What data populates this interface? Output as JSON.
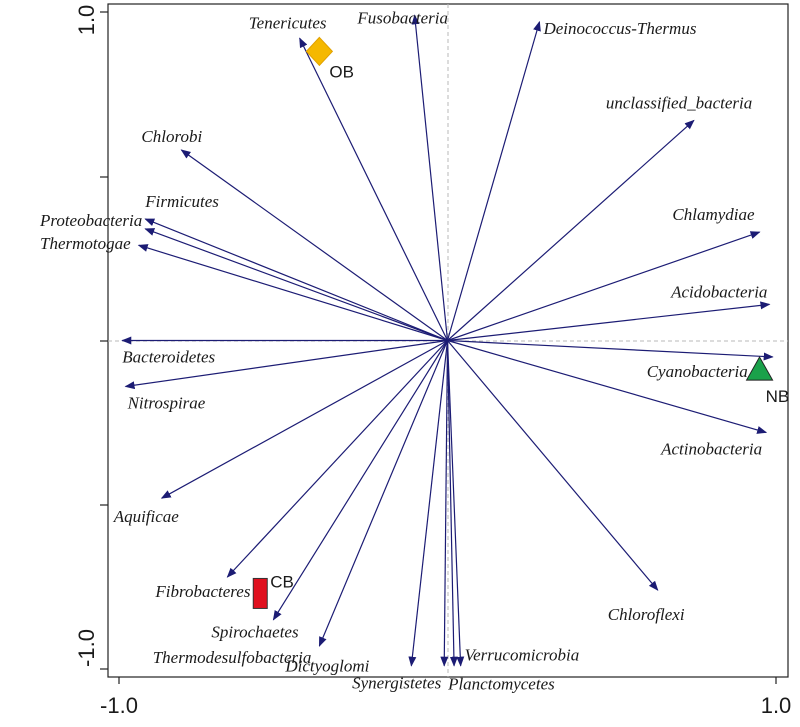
{
  "chart_data": {
    "type": "scatter",
    "subtype": "biplot",
    "xlim": [
      -1.0,
      1.0
    ],
    "ylim": [
      -1.0,
      1.0
    ],
    "x_tick_labels": [
      "-1.0",
      "1.0"
    ],
    "y_tick_labels": [
      "-1.0",
      "1.0"
    ],
    "reference_lines": "dashed at x=0 and y=0",
    "arrow_color": "#1c1c74",
    "species": [
      {
        "name": "Fusobacteria",
        "x": -0.1,
        "y": 0.99
      },
      {
        "name": "Tenericutes",
        "x": -0.45,
        "y": 0.92
      },
      {
        "name": "Deinococcus-Thermus",
        "x": 0.28,
        "y": 0.97
      },
      {
        "name": "unclassified_bacteria",
        "x": 0.75,
        "y": 0.67
      },
      {
        "name": "Chlorobi",
        "x": -0.81,
        "y": 0.58
      },
      {
        "name": "Firmicutes",
        "x": -0.92,
        "y": 0.37
      },
      {
        "name": "Proteobacteria",
        "x": -0.92,
        "y": 0.34
      },
      {
        "name": "Thermotogae",
        "x": -0.94,
        "y": 0.29
      },
      {
        "name": "Chlamydiae",
        "x": 0.95,
        "y": 0.33
      },
      {
        "name": "Acidobacteria",
        "x": 0.98,
        "y": 0.11
      },
      {
        "name": "Bacteroidetes",
        "x": -0.99,
        "y": 0.0
      },
      {
        "name": "Nitrospirae",
        "x": -0.98,
        "y": -0.14
      },
      {
        "name": "Cyanobacteria",
        "x": 0.99,
        "y": -0.05
      },
      {
        "name": "Actinobacteria",
        "x": 0.97,
        "y": -0.28
      },
      {
        "name": "Aquificae",
        "x": -0.87,
        "y": -0.48
      },
      {
        "name": "Fibrobacteres",
        "x": -0.67,
        "y": -0.72
      },
      {
        "name": "Spirochaetes",
        "x": -0.53,
        "y": -0.85
      },
      {
        "name": "Thermodesulfobacteria",
        "x": -0.39,
        "y": -0.93
      },
      {
        "name": "Chloroflexi",
        "x": 0.64,
        "y": -0.76
      },
      {
        "name": "Dictyoglomi",
        "x": -0.11,
        "y": -0.99
      },
      {
        "name": "Synergistetes",
        "x": -0.01,
        "y": -0.99
      },
      {
        "name": "Planctomycetes",
        "x": 0.02,
        "y": -0.99
      },
      {
        "name": "Verrucomicrobia",
        "x": 0.04,
        "y": -0.99
      }
    ],
    "sites": [
      {
        "name": "OB",
        "x": -0.39,
        "y": 0.88,
        "shape": "diamond",
        "color": "#f5b800"
      },
      {
        "name": "NB",
        "x": 0.95,
        "y": -0.09,
        "shape": "triangle",
        "color": "#1aa14a"
      },
      {
        "name": "CB",
        "x": -0.57,
        "y": -0.77,
        "shape": "rect",
        "color": "#e0101e"
      }
    ]
  }
}
